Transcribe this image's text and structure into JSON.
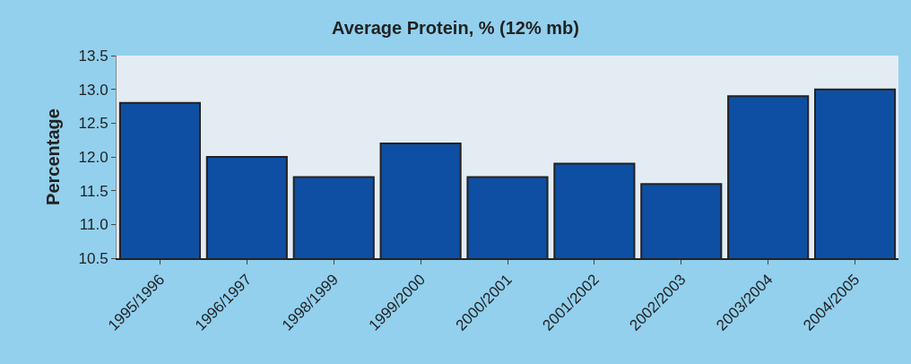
{
  "chart_data": {
    "type": "bar",
    "title": "Average Protein, % (12% mb)",
    "ylabel": "Percentage",
    "categories": [
      "1995/1996",
      "1996/1997",
      "1998/1999",
      "1999/2000",
      "2000/2001",
      "2001/2002",
      "2002/2003",
      "2003/2004",
      "2004/2005"
    ],
    "values": [
      12.8,
      12.0,
      11.7,
      12.2,
      11.7,
      11.9,
      11.6,
      12.9,
      13.0
    ],
    "color": "#0e4fa3",
    "ylim": [
      10.5,
      13.5
    ],
    "yticks": [
      {
        "value": 10.5,
        "label": "10.5"
      },
      {
        "value": 11,
        "label": "11.0"
      },
      {
        "value": 11.5,
        "label": "11.5"
      },
      {
        "value": 12,
        "label": "12.0"
      },
      {
        "value": 12.5,
        "label": "12.5"
      },
      {
        "value": 13,
        "label": "13.0"
      },
      {
        "value": 13.5,
        "label": "13.5"
      }
    ],
    "grid": false
  }
}
